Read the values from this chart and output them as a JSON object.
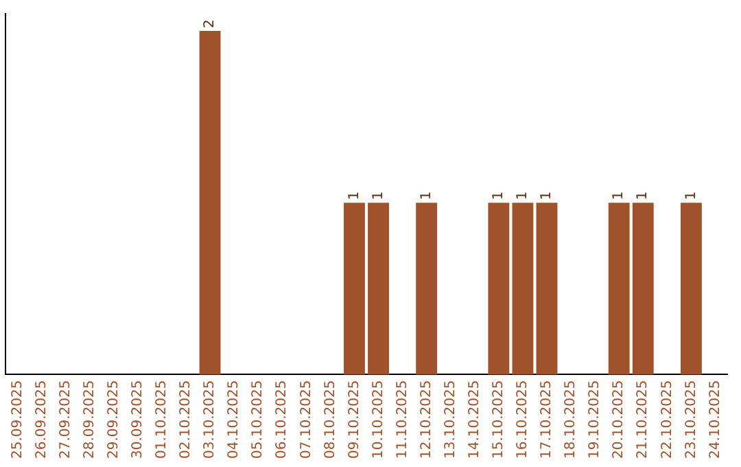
{
  "chart_data": {
    "type": "bar",
    "categories": [
      "25.09.2025",
      "26.09.2025",
      "27.09.2025",
      "28.09.2025",
      "29.09.2025",
      "30.09.2025",
      "01.10.2025",
      "02.10.2025",
      "03.10.2025",
      "04.10.2025",
      "05.10.2025",
      "06.10.2025",
      "07.10.2025",
      "08.10.2025",
      "09.10.2025",
      "10.10.2025",
      "11.10.2025",
      "12.10.2025",
      "13.10.2025",
      "14.10.2025",
      "15.10.2025",
      "16.10.2025",
      "17.10.2025",
      "18.10.2025",
      "19.10.2025",
      "20.10.2025",
      "21.10.2025",
      "22.10.2025",
      "23.10.2025",
      "24.10.2025"
    ],
    "values": [
      0,
      0,
      0,
      0,
      0,
      0,
      0,
      0,
      2,
      0,
      0,
      0,
      0,
      0,
      1,
      1,
      0,
      1,
      0,
      0,
      1,
      1,
      1,
      0,
      0,
      1,
      1,
      0,
      1,
      0
    ],
    "value_labels": [
      null,
      null,
      null,
      null,
      null,
      null,
      null,
      null,
      "2",
      null,
      null,
      null,
      null,
      null,
      "1",
      "1",
      null,
      "1",
      null,
      null,
      "1",
      "1",
      "1",
      null,
      null,
      "1",
      "1",
      null,
      "1",
      null
    ],
    "color": "#a0522d",
    "ylim": [
      0,
      2.1
    ],
    "tick_labels": "x",
    "grid": false,
    "legend": false
  }
}
